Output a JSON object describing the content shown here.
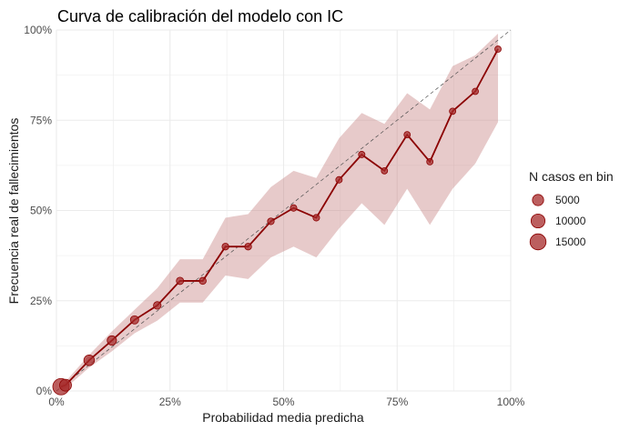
{
  "chart_data": {
    "type": "line",
    "title": "Curva de calibración del modelo con IC",
    "xlabel": "Probabilidad media predicha",
    "ylabel": "Frecuencia real de fallecimientos",
    "xlim": [
      0,
      1
    ],
    "ylim": [
      0,
      1
    ],
    "x_ticks": [
      {
        "value": 0,
        "label": "0%"
      },
      {
        "value": 0.25,
        "label": "25%"
      },
      {
        "value": 0.5,
        "label": "50%"
      },
      {
        "value": 0.75,
        "label": "75%"
      },
      {
        "value": 1,
        "label": "100%"
      }
    ],
    "y_ticks": [
      {
        "value": 0,
        "label": "0%"
      },
      {
        "value": 0.25,
        "label": "25%"
      },
      {
        "value": 0.5,
        "label": "50%"
      },
      {
        "value": 0.75,
        "label": "75%"
      },
      {
        "value": 1,
        "label": "100%"
      }
    ],
    "grid": true,
    "reference_line": {
      "from": [
        0,
        0
      ],
      "to": [
        1,
        1
      ],
      "style": "dashed"
    },
    "points": [
      {
        "x": 0.01,
        "y": 0.012,
        "n": 16000,
        "lo": 0.005,
        "hi": 0.02
      },
      {
        "x": 0.02,
        "y": 0.016,
        "n": 6000,
        "lo": 0.008,
        "hi": 0.026
      },
      {
        "x": 0.072,
        "y": 0.085,
        "n": 4000,
        "lo": 0.065,
        "hi": 0.1
      },
      {
        "x": 0.122,
        "y": 0.14,
        "n": 2500,
        "lo": 0.11,
        "hi": 0.165
      },
      {
        "x": 0.172,
        "y": 0.197,
        "n": 1500,
        "lo": 0.16,
        "hi": 0.225
      },
      {
        "x": 0.222,
        "y": 0.237,
        "n": 1000,
        "lo": 0.195,
        "hi": 0.285
      },
      {
        "x": 0.272,
        "y": 0.305,
        "n": 800,
        "lo": 0.245,
        "hi": 0.365
      },
      {
        "x": 0.322,
        "y": 0.305,
        "n": 600,
        "lo": 0.245,
        "hi": 0.365
      },
      {
        "x": 0.372,
        "y": 0.4,
        "n": 500,
        "lo": 0.32,
        "hi": 0.48
      },
      {
        "x": 0.422,
        "y": 0.4,
        "n": 500,
        "lo": 0.31,
        "hi": 0.49
      },
      {
        "x": 0.472,
        "y": 0.47,
        "n": 450,
        "lo": 0.37,
        "hi": 0.565
      },
      {
        "x": 0.522,
        "y": 0.507,
        "n": 400,
        "lo": 0.4,
        "hi": 0.61
      },
      {
        "x": 0.572,
        "y": 0.48,
        "n": 400,
        "lo": 0.37,
        "hi": 0.59
      },
      {
        "x": 0.622,
        "y": 0.585,
        "n": 350,
        "lo": 0.45,
        "hi": 0.7
      },
      {
        "x": 0.672,
        "y": 0.655,
        "n": 350,
        "lo": 0.52,
        "hi": 0.77
      },
      {
        "x": 0.722,
        "y": 0.61,
        "n": 300,
        "lo": 0.46,
        "hi": 0.74
      },
      {
        "x": 0.772,
        "y": 0.71,
        "n": 300,
        "lo": 0.56,
        "hi": 0.825
      },
      {
        "x": 0.822,
        "y": 0.635,
        "n": 300,
        "lo": 0.46,
        "hi": 0.78
      },
      {
        "x": 0.872,
        "y": 0.775,
        "n": 300,
        "lo": 0.56,
        "hi": 0.9
      },
      {
        "x": 0.922,
        "y": 0.83,
        "n": 300,
        "lo": 0.63,
        "hi": 0.93
      },
      {
        "x": 0.972,
        "y": 0.947,
        "n": 300,
        "lo": 0.745,
        "hi": 0.99
      }
    ],
    "legend": {
      "title": "N casos en bin",
      "position": "right",
      "entries": [
        {
          "label": "5000",
          "n": 5000
        },
        {
          "label": "10000",
          "n": 10000
        },
        {
          "label": "15000",
          "n": 15000
        }
      ]
    },
    "colors": {
      "line": "#8b0000",
      "point": "#a52a2a",
      "ribbon": "#c47a7a",
      "grid": "#ebebeb",
      "reference": "#4d4d4d"
    }
  }
}
